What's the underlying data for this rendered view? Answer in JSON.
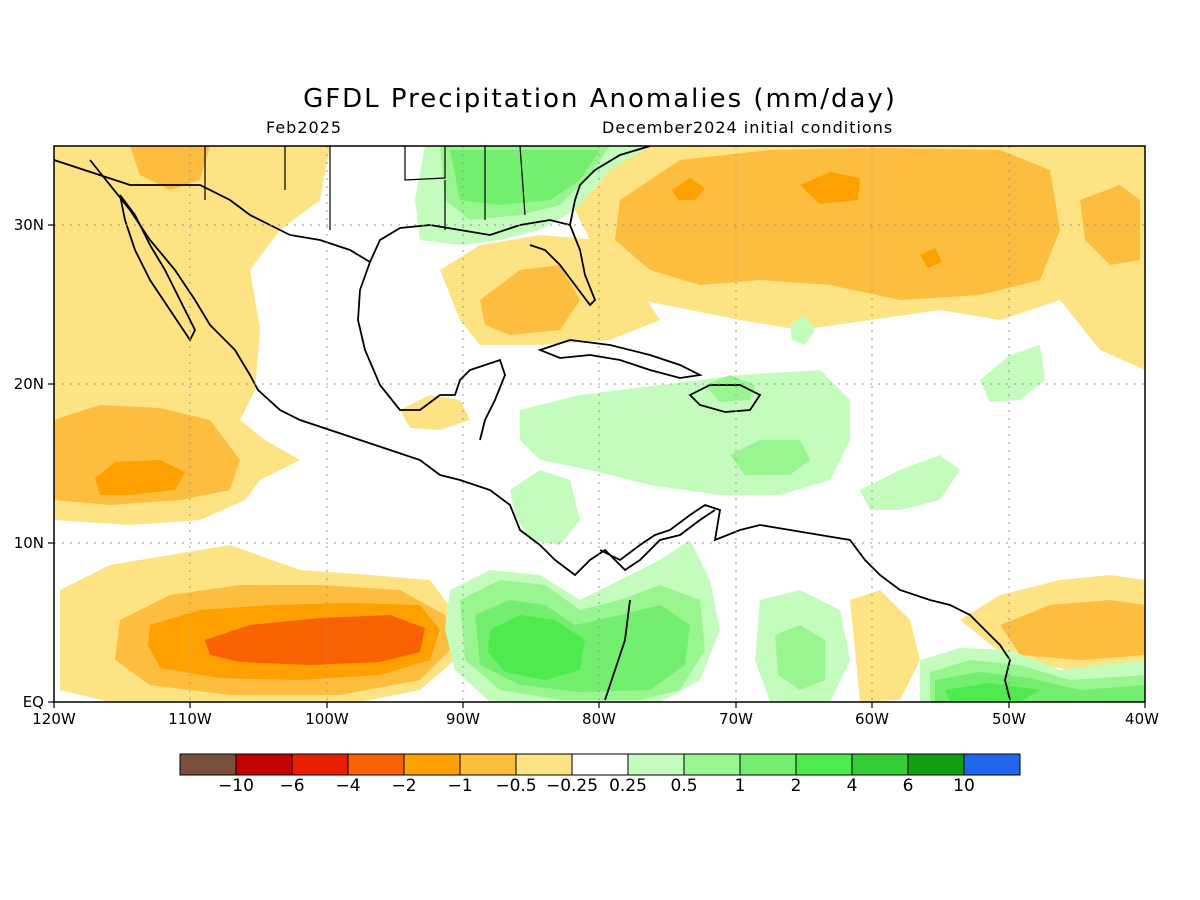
{
  "map": {
    "title": "GFDL Precipitation Anomalies (mm/day)",
    "valid_month": "Feb2025",
    "initial_conditions": "December2024 initial conditions",
    "lat_labels": [
      "30N",
      "20N",
      "10N",
      "EQ"
    ],
    "lon_labels": [
      "120W",
      "110W",
      "100W",
      "90W",
      "80W",
      "70W",
      "60W",
      "50W",
      "40W"
    ],
    "colorbar": {
      "labels": [
        "−10",
        "−6",
        "−4",
        "−2",
        "−1",
        "−0.5",
        "−0.25",
        "0.25",
        "0.5",
        "1",
        "2",
        "4",
        "6",
        "10"
      ],
      "colors": [
        "#7a4e3c",
        "#c40000",
        "#e81e00",
        "#f86200",
        "#fea000",
        "#fdbd3e",
        "#fde384",
        "#ffffff",
        "#c4fcbe",
        "#99f590",
        "#74ee6e",
        "#4eea4e",
        "#36cc36",
        "#12a012",
        "#2266ee"
      ]
    },
    "colors": {
      "dry_light": "#fde384",
      "dry_medium": "#fdbd3e",
      "dry_strong": "#fea000",
      "dry_heavy": "#f86200",
      "wet_light": "#c4fcbe",
      "wet_medium": "#99f590",
      "wet_strong": "#74ee6e",
      "wet_heavy": "#4eea4e"
    }
  }
}
